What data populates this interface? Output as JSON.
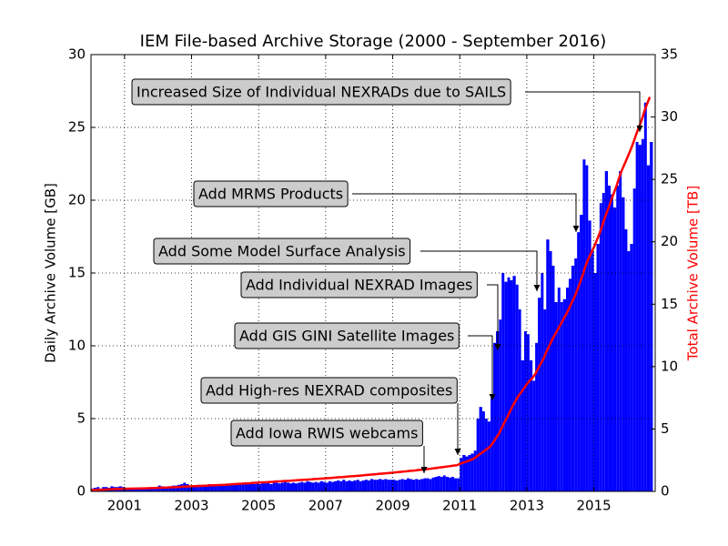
{
  "chart_data": {
    "type": "bar",
    "title": "IEM File-based Archive Storage (2000 - September 2016)",
    "ylabel": "Daily Archive Volume [GB]",
    "y2label": "Total Archive Volume [TB]",
    "x": [
      2000,
      2000.08,
      2000.17,
      2000.25,
      2000.33,
      2000.42,
      2000.5,
      2000.58,
      2000.67,
      2000.75,
      2000.83,
      2000.92,
      2001,
      2001.08,
      2001.17,
      2001.25,
      2001.33,
      2001.42,
      2001.5,
      2001.58,
      2001.67,
      2001.75,
      2001.83,
      2001.92,
      2002,
      2002.08,
      2002.17,
      2002.25,
      2002.33,
      2002.42,
      2002.5,
      2002.58,
      2002.67,
      2002.75,
      2002.83,
      2002.92,
      2003,
      2003.08,
      2003.17,
      2003.25,
      2003.33,
      2003.42,
      2003.5,
      2003.58,
      2003.67,
      2003.75,
      2003.83,
      2003.92,
      2004,
      2004.08,
      2004.17,
      2004.25,
      2004.33,
      2004.42,
      2004.5,
      2004.58,
      2004.67,
      2004.75,
      2004.83,
      2004.92,
      2005,
      2005.08,
      2005.17,
      2005.25,
      2005.33,
      2005.42,
      2005.5,
      2005.58,
      2005.67,
      2005.75,
      2005.83,
      2005.92,
      2006,
      2006.08,
      2006.17,
      2006.25,
      2006.33,
      2006.42,
      2006.5,
      2006.58,
      2006.67,
      2006.75,
      2006.83,
      2006.92,
      2007,
      2007.08,
      2007.17,
      2007.25,
      2007.33,
      2007.42,
      2007.5,
      2007.58,
      2007.67,
      2007.75,
      2007.83,
      2007.92,
      2008,
      2008.08,
      2008.17,
      2008.25,
      2008.33,
      2008.42,
      2008.5,
      2008.58,
      2008.67,
      2008.75,
      2008.83,
      2008.92,
      2009,
      2009.08,
      2009.17,
      2009.25,
      2009.33,
      2009.42,
      2009.5,
      2009.58,
      2009.67,
      2009.75,
      2009.83,
      2009.92,
      2010,
      2010.08,
      2010.17,
      2010.25,
      2010.33,
      2010.42,
      2010.5,
      2010.58,
      2010.67,
      2010.75,
      2010.83,
      2010.92,
      2011,
      2011.08,
      2011.17,
      2011.25,
      2011.33,
      2011.42,
      2011.5,
      2011.58,
      2011.67,
      2011.75,
      2011.83,
      2011.92,
      2012,
      2012.08,
      2012.17,
      2012.25,
      2012.33,
      2012.42,
      2012.5,
      2012.58,
      2012.67,
      2012.75,
      2012.83,
      2012.92,
      2013,
      2013.08,
      2013.17,
      2013.25,
      2013.33,
      2013.42,
      2013.5,
      2013.58,
      2013.67,
      2013.75,
      2013.83,
      2013.92,
      2014,
      2014.08,
      2014.17,
      2014.25,
      2014.33,
      2014.42,
      2014.5,
      2014.58,
      2014.67,
      2014.75,
      2014.83,
      2014.92,
      2015,
      2015.08,
      2015.17,
      2015.25,
      2015.33,
      2015.42,
      2015.5,
      2015.58,
      2015.67,
      2015.75,
      2015.83,
      2015.92,
      2016,
      2016.08,
      2016.17,
      2016.25,
      2016.33,
      2016.42,
      2016.5,
      2016.58,
      2016.67
    ],
    "series": [
      {
        "type": "bar",
        "color": "#0000ff",
        "values": [
          0.2,
          0.25,
          0.3,
          0.2,
          0.3,
          0.3,
          0.25,
          0.35,
          0.3,
          0.3,
          0.35,
          0.3,
          0.2,
          0.15,
          0.2,
          0.15,
          0.2,
          0.2,
          0.15,
          0.2,
          0.15,
          0.2,
          0.2,
          0.3,
          0.4,
          0.35,
          0.3,
          0.3,
          0.35,
          0.4,
          0.4,
          0.45,
          0.5,
          0.6,
          0.5,
          0.4,
          0.4,
          0.4,
          0.45,
          0.4,
          0.45,
          0.4,
          0.5,
          0.45,
          0.5,
          0.45,
          0.5,
          0.45,
          0.5,
          0.5,
          0.45,
          0.5,
          0.55,
          0.5,
          0.55,
          0.5,
          0.55,
          0.5,
          0.5,
          0.55,
          0.5,
          0.6,
          0.55,
          0.6,
          0.5,
          0.7,
          0.6,
          0.55,
          0.6,
          0.65,
          0.6,
          0.55,
          0.6,
          0.55,
          0.6,
          0.65,
          0.6,
          0.7,
          0.65,
          0.6,
          0.65,
          0.6,
          0.7,
          0.65,
          0.6,
          0.7,
          0.65,
          0.7,
          0.75,
          0.7,
          0.8,
          0.7,
          0.75,
          0.7,
          0.75,
          0.8,
          0.7,
          0.75,
          0.8,
          0.75,
          0.85,
          0.8,
          0.8,
          0.85,
          0.8,
          0.85,
          0.8,
          0.8,
          0.8,
          0.75,
          0.8,
          0.85,
          0.8,
          0.9,
          0.85,
          0.8,
          0.85,
          0.8,
          0.85,
          0.9,
          0.9,
          0.85,
          0.95,
          1.0,
          1.05,
          1.0,
          1.1,
          1.0,
          0.95,
          1.0,
          0.9,
          0.9,
          2.3,
          2.5,
          2.4,
          2.5,
          2.6,
          2.8,
          5.0,
          5.8,
          5.5,
          5.0,
          4.8,
          6.4,
          10.2,
          11.0,
          11.8,
          15.0,
          14.4,
          14.7,
          14.5,
          14.8,
          14.2,
          12.5,
          9.0,
          11.0,
          10.8,
          9.0,
          7.6,
          10.2,
          13.3,
          15.0,
          12.5,
          17.3,
          16.5,
          15.5,
          13.0,
          14.0,
          13.0,
          13.2,
          14.0,
          14.6,
          15.5,
          16.0,
          17.8,
          19.0,
          22.8,
          22.4,
          18.6,
          16.5,
          15.0,
          17.0,
          19.8,
          20.5,
          22.0,
          21.0,
          20.4,
          19.5,
          21.0,
          22.0,
          20.2,
          18.0,
          16.5,
          17.0,
          20.8,
          24.0,
          23.8,
          24.2,
          26.7,
          22.4,
          24.0
        ]
      },
      {
        "type": "line",
        "axis": "y2",
        "color": "#ff0000",
        "values": [
          0.1,
          0.11,
          0.12,
          0.13,
          0.14,
          0.15,
          0.16,
          0.17,
          0.18,
          0.19,
          0.2,
          0.21,
          0.21,
          0.22,
          0.22,
          0.23,
          0.23,
          0.24,
          0.24,
          0.25,
          0.25,
          0.26,
          0.26,
          0.27,
          0.28,
          0.29,
          0.3,
          0.31,
          0.32,
          0.33,
          0.34,
          0.35,
          0.36,
          0.38,
          0.39,
          0.4,
          0.41,
          0.42,
          0.43,
          0.44,
          0.45,
          0.46,
          0.47,
          0.48,
          0.49,
          0.5,
          0.51,
          0.52,
          0.53,
          0.55,
          0.56,
          0.58,
          0.59,
          0.61,
          0.62,
          0.64,
          0.65,
          0.66,
          0.68,
          0.69,
          0.7,
          0.72,
          0.73,
          0.74,
          0.76,
          0.77,
          0.79,
          0.8,
          0.81,
          0.83,
          0.84,
          0.85,
          0.87,
          0.88,
          0.9,
          0.91,
          0.93,
          0.94,
          0.96,
          0.97,
          0.99,
          1.0,
          1.02,
          1.03,
          1.05,
          1.07,
          1.08,
          1.1,
          1.12,
          1.14,
          1.15,
          1.17,
          1.19,
          1.21,
          1.22,
          1.24,
          1.26,
          1.28,
          1.3,
          1.32,
          1.34,
          1.36,
          1.38,
          1.4,
          1.42,
          1.44,
          1.46,
          1.48,
          1.5,
          1.52,
          1.55,
          1.57,
          1.59,
          1.61,
          1.64,
          1.66,
          1.68,
          1.71,
          1.73,
          1.75,
          1.78,
          1.8,
          1.83,
          1.86,
          1.89,
          1.92,
          1.95,
          1.98,
          2.01,
          2.04,
          2.07,
          2.1,
          2.2,
          2.28,
          2.36,
          2.44,
          2.52,
          2.62,
          2.78,
          2.95,
          3.12,
          3.28,
          3.43,
          3.62,
          3.93,
          4.27,
          4.62,
          5.07,
          5.51,
          5.96,
          6.4,
          6.85,
          7.28,
          7.66,
          7.93,
          8.26,
          8.59,
          8.86,
          9.09,
          9.4,
          9.8,
          10.26,
          10.64,
          11.16,
          11.66,
          12.13,
          12.52,
          12.95,
          13.34,
          13.74,
          14.16,
          14.6,
          15.07,
          15.56,
          16.1,
          16.67,
          17.36,
          18.04,
          18.6,
          19.1,
          19.55,
          20.07,
          20.67,
          21.29,
          21.95,
          22.59,
          23.2,
          23.79,
          24.43,
          25.09,
          25.7,
          26.25,
          26.75,
          27.26,
          27.89,
          28.5,
          29.1,
          29.7,
          30.4,
          31.0,
          31.6
        ]
      }
    ],
    "xlim": [
      2000,
      2016.83
    ],
    "xticks": [
      2001,
      2003,
      2005,
      2007,
      2009,
      2011,
      2013,
      2015
    ],
    "ylim": [
      0,
      30
    ],
    "yticks": [
      0,
      5,
      10,
      15,
      20,
      25,
      30
    ],
    "y2lim": [
      0,
      35
    ],
    "y2ticks": [
      0,
      5,
      10,
      15,
      20,
      25,
      30,
      35
    ],
    "grid": true,
    "annotations": [
      "Increased Size of Individual NEXRADs due to SAILS",
      "Add MRMS Products",
      "Add Some Model Surface Analysis",
      "Add Individual NEXRAD Images",
      "Add GIS GINI Satellite Images",
      "Add High-res NEXRAD composites",
      "Add Iowa RWIS webcams"
    ]
  }
}
